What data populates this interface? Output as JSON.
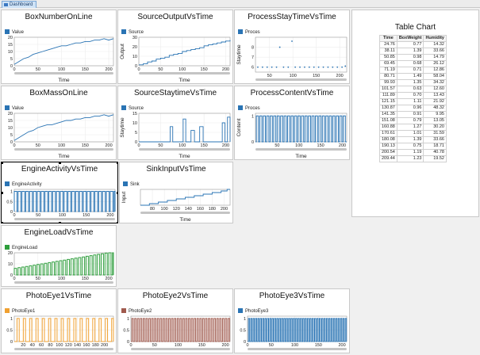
{
  "tab": {
    "label": "Dashboard"
  },
  "charts": [
    {
      "id": "c1",
      "title": "BoxNumberOnLine",
      "legend": "Value",
      "color": "#2a74b4",
      "type": "line",
      "xlabel": "Time",
      "ylabel": "",
      "xlim": [
        0,
        210
      ],
      "xticks": [
        0,
        50,
        100,
        150,
        200
      ],
      "ylim": [
        0,
        20
      ],
      "yticks": [
        0,
        5,
        10,
        15,
        20
      ],
      "x": [
        0,
        10,
        20,
        30,
        40,
        50,
        60,
        70,
        80,
        90,
        100,
        110,
        120,
        130,
        140,
        150,
        160,
        170,
        180,
        190,
        200,
        210
      ],
      "y": [
        1,
        3,
        5,
        6,
        8,
        9,
        10,
        11,
        12,
        13,
        14,
        14,
        15,
        16,
        16,
        17,
        17,
        18,
        18,
        19,
        18,
        19
      ]
    },
    {
      "id": "c2",
      "title": "SourceOutputVsTime",
      "legend": "Source",
      "color": "#2a74b4",
      "type": "step",
      "xlabel": "Time",
      "ylabel": "Output",
      "xlim": [
        0,
        210
      ],
      "xticks": [
        0,
        50,
        100,
        150,
        200
      ],
      "ylim": [
        0,
        30
      ],
      "yticks": [
        0,
        10,
        20,
        30
      ],
      "x": [
        0,
        10,
        20,
        30,
        40,
        50,
        60,
        70,
        80,
        90,
        100,
        110,
        120,
        130,
        140,
        150,
        160,
        170,
        180,
        190,
        200,
        210
      ],
      "y": [
        1,
        2,
        4,
        5,
        7,
        8,
        9,
        11,
        12,
        13,
        15,
        16,
        17,
        18,
        19,
        21,
        22,
        23,
        24,
        25,
        26,
        27
      ]
    },
    {
      "id": "c3",
      "title": "ProcessStayTimeVsTime",
      "legend": "Proces",
      "color": "#2a74b4",
      "type": "scatter",
      "xlabel": "",
      "ylabel": "Staytime",
      "xlim": [
        20,
        215
      ],
      "xticks": [
        50,
        100,
        150,
        200
      ],
      "ylim": [
        5.5,
        9
      ],
      "yticks": [
        6,
        7,
        8
      ],
      "x": [
        25,
        35,
        45,
        55,
        65,
        72,
        80,
        90,
        98,
        105,
        115,
        125,
        135,
        145,
        155,
        165,
        175,
        185,
        195,
        205,
        212
      ],
      "y": [
        6,
        6,
        6,
        6,
        6,
        8,
        6,
        6,
        8.6,
        6,
        6,
        6,
        6,
        6,
        6,
        6,
        6,
        6,
        6,
        6,
        6.1
      ]
    },
    {
      "id": "c4",
      "title": "BoxMassOnLine",
      "legend": "Value",
      "color": "#2a74b4",
      "type": "line",
      "xlabel": "Time",
      "ylabel": "",
      "xlim": [
        0,
        210
      ],
      "xticks": [
        0,
        50,
        100,
        150,
        200
      ],
      "ylim": [
        0,
        20
      ],
      "yticks": [
        0,
        5,
        10,
        15,
        20
      ],
      "x": [
        0,
        10,
        20,
        30,
        40,
        50,
        60,
        70,
        80,
        90,
        100,
        110,
        120,
        130,
        140,
        150,
        160,
        170,
        180,
        190,
        200,
        210
      ],
      "y": [
        1,
        3,
        5,
        7,
        8,
        10,
        11,
        12,
        12,
        13,
        14,
        15,
        15,
        16,
        16,
        17,
        17,
        18,
        18,
        19,
        18,
        19
      ]
    },
    {
      "id": "c5",
      "title": "SourceStaytimeVsTime",
      "legend": "Source",
      "color": "#2a74b4",
      "type": "step",
      "xlabel": "Time",
      "ylabel": "Staytime",
      "xlim": [
        0,
        210
      ],
      "xticks": [
        0,
        50,
        100,
        150,
        200
      ],
      "ylim": [
        0,
        15
      ],
      "yticks": [
        0,
        5,
        10,
        15
      ],
      "x": [
        0,
        70,
        72,
        76,
        78,
        100,
        102,
        106,
        108,
        118,
        120,
        126,
        128,
        138,
        140,
        146,
        148,
        190,
        192,
        196,
        198,
        202,
        204,
        210
      ],
      "y": [
        0,
        0,
        8,
        8,
        0,
        0,
        12,
        12,
        0,
        0,
        6,
        6,
        0,
        0,
        8,
        8,
        0,
        0,
        10,
        10,
        0,
        0,
        13,
        0
      ]
    },
    {
      "id": "c6",
      "title": "ProcessContentVsTime",
      "legend": "Proces",
      "color": "#2a74b4",
      "type": "pulse",
      "xlabel": "Time",
      "ylabel": "Content",
      "xlim": [
        0,
        210
      ],
      "xticks": [
        50,
        100,
        150,
        200
      ],
      "ylim": [
        0,
        1.1
      ],
      "yticks": [
        0,
        1
      ],
      "pulse_period": 8,
      "pulse_duty": 0.6,
      "pulse_start": 2,
      "pulse_high": 1
    },
    {
      "id": "c7",
      "title": "EngineActivityVsTime",
      "legend": "EngineActivity",
      "color": "#2a74b4",
      "type": "pulse",
      "xlabel": "",
      "ylabel": "",
      "xlim": [
        0,
        210
      ],
      "xticks": [
        0,
        50,
        100,
        150,
        200
      ],
      "ylim": [
        0,
        1.1
      ],
      "yticks": [
        0,
        0.5,
        1.0
      ],
      "pulse_period": 8,
      "pulse_duty": 0.7,
      "pulse_start": 0,
      "pulse_high": 1
    },
    {
      "id": "c8",
      "title": "SinkInputVsTime",
      "legend": "Sink",
      "color": "#2a74b4",
      "type": "step",
      "xlabel": "Time",
      "ylabel": "Input",
      "xlim": [
        60,
        210
      ],
      "xticks": [
        80,
        100,
        120,
        140,
        160,
        180,
        200
      ],
      "ylim": [
        0,
        10
      ],
      "yticks": [],
      "x": [
        60,
        75,
        90,
        105,
        120,
        135,
        150,
        165,
        180,
        195,
        205,
        210
      ],
      "y": [
        0,
        1,
        2,
        3,
        4,
        5,
        6,
        7,
        8,
        9,
        10,
        10
      ]
    },
    {
      "id": "c9",
      "title": "EngineLoadVsTime",
      "legend": "EngineLoad",
      "color": "#2e9e3c",
      "type": "rampload",
      "xlabel": "",
      "ylabel": "",
      "xlim": [
        0,
        210
      ],
      "xticks": [
        0,
        50,
        100,
        150,
        200
      ],
      "ylim": [
        0,
        20
      ],
      "yticks": [
        0,
        10,
        20
      ],
      "pulse_period": 8,
      "pulse_duty": 0.6,
      "pulse_start": 0,
      "pulse_high": 20
    },
    {
      "id": "c10",
      "title": "PhotoEye1VsTime",
      "legend": "PhotoEye1",
      "color": "#f0a030",
      "type": "pulse",
      "xlabel": "",
      "ylabel": "",
      "xlim": [
        0,
        220
      ],
      "xticks": [
        20,
        40,
        60,
        80,
        100,
        120,
        140,
        160,
        180,
        200
      ],
      "ylim": [
        0,
        1.1
      ],
      "yticks": [
        0,
        0.5,
        1.0
      ],
      "pulse_period": 14,
      "pulse_duty": 0.35,
      "pulse_start": 6,
      "pulse_high": 1
    },
    {
      "id": "c11",
      "title": "PhotoEye2VsTime",
      "legend": "PhotoEye2",
      "color": "#a05a4e",
      "type": "pulse",
      "xlabel": "",
      "ylabel": "",
      "xlim": [
        0,
        210
      ],
      "xticks": [
        0,
        50,
        100,
        150,
        200
      ],
      "ylim": [
        0,
        1.1
      ],
      "yticks": [
        0,
        0.5,
        1.0
      ],
      "pulse_period": 6,
      "pulse_duty": 0.5,
      "pulse_start": 2,
      "pulse_high": 1
    },
    {
      "id": "c12",
      "title": "PhotoEye3VsTime",
      "legend": "PhotoEye3",
      "color": "#2a74b4",
      "type": "pulse",
      "xlabel": "",
      "ylabel": "",
      "xlim": [
        0,
        210
      ],
      "xticks": [
        0,
        50,
        100,
        150,
        200
      ],
      "ylim": [
        0,
        1.1
      ],
      "yticks": [
        0,
        0.5,
        1.0
      ],
      "pulse_period": 5,
      "pulse_duty": 0.5,
      "pulse_start": 2,
      "pulse_high": 1
    }
  ],
  "table": {
    "title": "Table Chart",
    "columns": [
      "Time",
      "BoxWeight",
      "Humidity"
    ],
    "rows": [
      [
        "24.76",
        "0.77",
        "14.32"
      ],
      [
        "38.11",
        "1.39",
        "33.66"
      ],
      [
        "50.85",
        "0.98",
        "14.79"
      ],
      [
        "69.45",
        "0.68",
        "26.12"
      ],
      [
        "71.19",
        "0.71",
        "12.86"
      ],
      [
        "80.71",
        "1.49",
        "58.04"
      ],
      [
        "99.93",
        "1.35",
        "34.32"
      ],
      [
        "101.57",
        "0.63",
        "12.60"
      ],
      [
        "111.89",
        "0.70",
        "13.43"
      ],
      [
        "121.15",
        "1.11",
        "21.92"
      ],
      [
        "130.87",
        "0.96",
        "48.32"
      ],
      [
        "141.35",
        "0.91",
        "9.95"
      ],
      [
        "151.08",
        "0.79",
        "13.05"
      ],
      [
        "160.88",
        "1.27",
        "30.20"
      ],
      [
        "170.61",
        "1.01",
        "31.59"
      ],
      [
        "180.08",
        "1.39",
        "33.66"
      ],
      [
        "190.13",
        "0.75",
        "18.71"
      ],
      [
        "200.54",
        "1.19",
        "40.78"
      ],
      [
        "209.44",
        "1.23",
        "19.52"
      ]
    ]
  }
}
